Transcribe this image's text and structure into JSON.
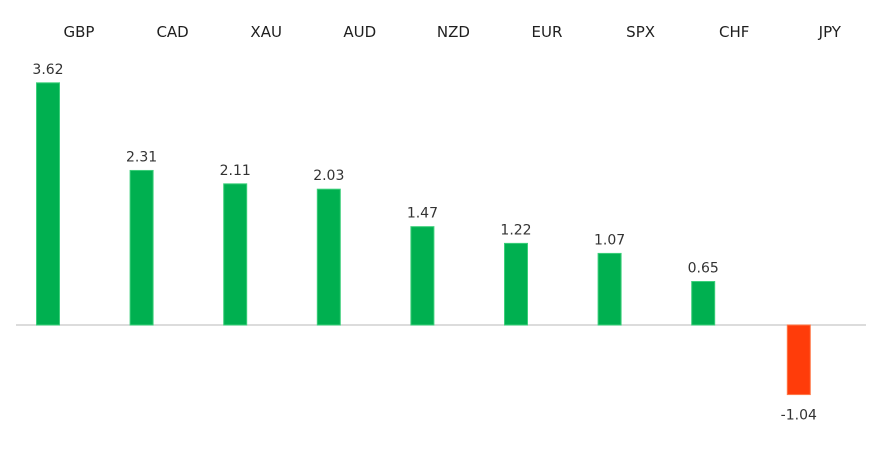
{
  "chart_data": {
    "type": "bar",
    "categories": [
      "GBP",
      "CAD",
      "XAU",
      "AUD",
      "NZD",
      "EUR",
      "SPX",
      "CHF",
      "JPY"
    ],
    "values": [
      3.62,
      2.31,
      2.11,
      2.03,
      1.47,
      1.22,
      1.07,
      0.65,
      -1.04
    ],
    "value_labels": [
      "3.62",
      "2.31",
      "2.11",
      "2.03",
      "1.47",
      "1.22",
      "1.07",
      "0.65",
      "-1.04"
    ],
    "title": "",
    "xlabel": "",
    "ylabel": "",
    "ylim": [
      -1.5,
      4
    ],
    "grid": false,
    "category_labels_position": "top",
    "colors": {
      "positive": "#00b050",
      "positive_edge": "#3ccf7a",
      "negative": "#ff3c0a",
      "negative_edge": "#ff7a4a",
      "baseline": "#c8c8c8",
      "text": "#1f1f1f"
    }
  }
}
